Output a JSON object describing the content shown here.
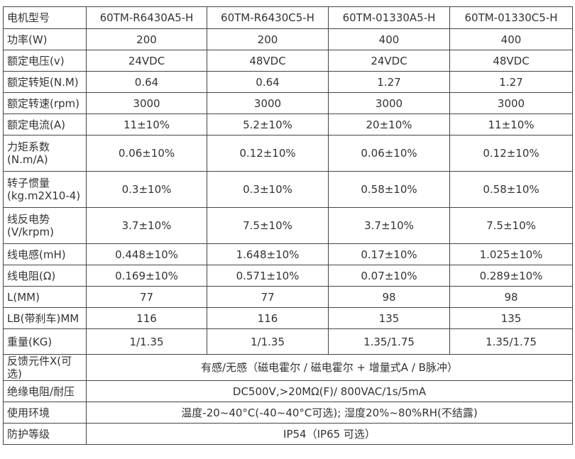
{
  "header": {
    "label": "电机型号",
    "models": [
      "60TM-R6430A5-H",
      "60TM-R6430C5-H",
      "60TM-01330A5-H",
      "60TM-01330C5-H"
    ]
  },
  "rows": [
    {
      "label": [
        "功率(W)"
      ],
      "values": [
        "200",
        "200",
        "400",
        "400"
      ]
    },
    {
      "label": [
        "额定电压(v)"
      ],
      "values": [
        "24VDC",
        "48VDC",
        "24VDC",
        "48VDC"
      ]
    },
    {
      "label": [
        "额定转矩(N.M)"
      ],
      "values": [
        "0.64",
        "0.64",
        "1.27",
        "1.27"
      ]
    },
    {
      "label": [
        "额定转速(rpm)"
      ],
      "values": [
        "3000",
        "3000",
        "3000",
        "3000"
      ]
    },
    {
      "label": [
        "额定电流(A)"
      ],
      "values": [
        "11±10%",
        "5.2±10%",
        "20±10%",
        "11±10%"
      ]
    },
    {
      "label": [
        "力矩系数",
        "(N.m/A)"
      ],
      "values": [
        "0.06±10%",
        "0.12±10%",
        "0.06±10%",
        "0.12±10%"
      ]
    },
    {
      "label": [
        "转子惯量",
        "(kg.m2X10-4)"
      ],
      "values": [
        "0.3±10%",
        "0.3±10%",
        "0.58±10%",
        "0.58±10%"
      ]
    },
    {
      "label": [
        "线反电势",
        "(V/krpm)"
      ],
      "values": [
        "3.7±10%",
        "7.5±10%",
        "3.7±10%",
        "7.5±10%"
      ]
    },
    {
      "label": [
        "线电感(mH)"
      ],
      "values": [
        "0.448±10%",
        "1.648±10%",
        "0.17±10%",
        "1.025±10%"
      ]
    },
    {
      "label": [
        "线电阻(Ω)"
      ],
      "values": [
        "0.169±10%",
        "0.571±10%",
        "0.07±10%",
        "0.289±10%"
      ]
    },
    {
      "label": [
        "L(MM)"
      ],
      "values": [
        "77",
        "77",
        "98",
        "98"
      ]
    },
    {
      "label": [
        "LB(带刹车)MM"
      ],
      "values": [
        "116",
        "116",
        "135",
        "135"
      ]
    },
    {
      "label": [
        "重量(KG)"
      ],
      "values": [
        "1/1.35",
        "1/1.35",
        "1.35/1.75",
        "1.35/1.75"
      ]
    }
  ],
  "shared_rows": [
    {
      "label": "反馈元件X(可选)",
      "value": "有感/无感（磁电霍尔 / 磁电霍尔 + 增量式A / B脉冲）"
    },
    {
      "label": "绝缘电阻/耐压",
      "value": "DC500V,>20MΩ(F)/ 800VAC/1s/5mA"
    },
    {
      "label": "使用环境",
      "value": "温度-20~40°C(-40~40°C可选); 湿度20%~80%RH(不结露)"
    },
    {
      "label": "防护等级",
      "value": "IP54（IP65 可选）"
    }
  ]
}
